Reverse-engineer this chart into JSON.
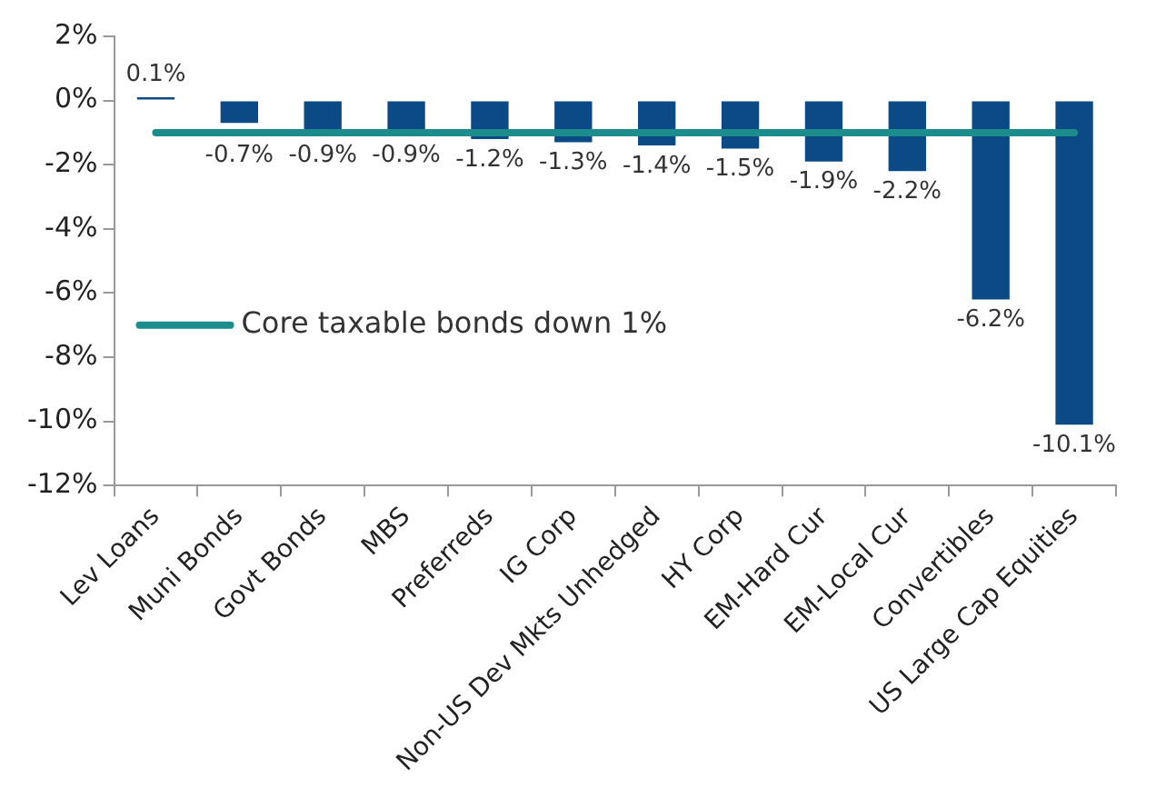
{
  "chart_data": {
    "type": "bar",
    "categories": [
      "Lev Loans",
      "Muni Bonds",
      "Govt Bonds",
      "MBS",
      "Preferreds",
      "IG Corp",
      "Non-US Dev Mkts Unhedged",
      "HY Corp",
      "EM-Hard Cur",
      "EM-Local Cur",
      "Convertibles",
      "US Large Cap Equities"
    ],
    "values": [
      0.1,
      -0.7,
      -0.9,
      -0.9,
      -1.2,
      -1.3,
      -1.4,
      -1.5,
      -1.9,
      -2.2,
      -6.2,
      -10.1
    ],
    "value_labels": [
      "0.1%",
      "-0.7%",
      "-0.9%",
      "-0.9%",
      "-1.2%",
      "-1.3%",
      "-1.4%",
      "-1.5%",
      "-1.9%",
      "-2.2%",
      "-6.2%",
      "-10.1%"
    ],
    "color": "#0b4a84",
    "ylim": [
      -12,
      2
    ],
    "yticks": [
      {
        "value": -12,
        "label": "-12%"
      },
      {
        "value": -10,
        "label": "-10%"
      },
      {
        "value": -8,
        "label": "-8%"
      },
      {
        "value": -6,
        "label": "-6%"
      },
      {
        "value": -4,
        "label": "-4%"
      },
      {
        "value": -2,
        "label": "-2%"
      },
      {
        "value": 0,
        "label": "0%"
      },
      {
        "value": 2,
        "label": "2%"
      }
    ],
    "ref_lines": [
      {
        "axis": "y",
        "value": -1,
        "label": "Core taxable bonds down 1%",
        "color": "#1d8c8c"
      }
    ],
    "grid": false
  }
}
